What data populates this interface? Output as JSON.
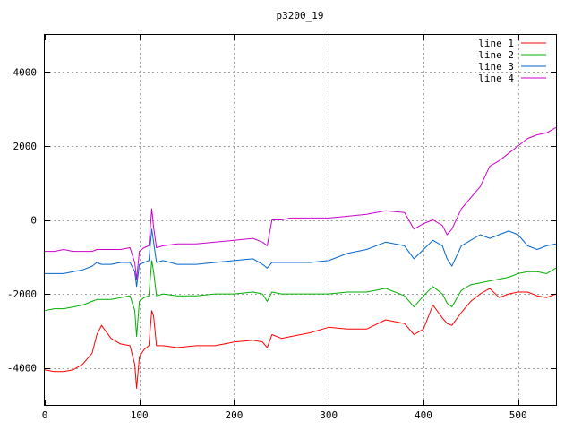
{
  "chart_data": {
    "type": "line",
    "title": "p3200_19",
    "xlabel": "",
    "ylabel": "",
    "xlim": [
      0,
      540
    ],
    "ylim": [
      -5000,
      5000
    ],
    "x_ticks": [
      0,
      100,
      200,
      300,
      400,
      500
    ],
    "y_ticks": [
      -4000,
      -2000,
      0,
      2000,
      4000
    ],
    "grid": true,
    "legend_position": "top-right",
    "x": [
      0,
      10,
      20,
      30,
      40,
      50,
      55,
      60,
      70,
      80,
      90,
      95,
      97,
      100,
      105,
      110,
      113,
      115,
      118,
      125,
      140,
      160,
      180,
      200,
      220,
      230,
      235,
      240,
      250,
      260,
      280,
      300,
      320,
      340,
      360,
      380,
      390,
      400,
      410,
      420,
      425,
      430,
      440,
      450,
      460,
      470,
      480,
      490,
      500,
      510,
      520,
      530,
      540
    ],
    "series": [
      {
        "name": "line 1",
        "color": "#ff0000",
        "values": [
          -4050,
          -4100,
          -4100,
          -4050,
          -3900,
          -3600,
          -3100,
          -2850,
          -3200,
          -3350,
          -3400,
          -3900,
          -4550,
          -3700,
          -3500,
          -3400,
          -2450,
          -2600,
          -3400,
          -3400,
          -3450,
          -3400,
          -3400,
          -3300,
          -3250,
          -3300,
          -3450,
          -3100,
          -3200,
          -3150,
          -3050,
          -2900,
          -2950,
          -2950,
          -2700,
          -2800,
          -3100,
          -2950,
          -2300,
          -2650,
          -2800,
          -2850,
          -2500,
          -2200,
          -2000,
          -1850,
          -2100,
          -2000,
          -1950,
          -1950,
          -2050,
          -2100,
          -2000
        ]
      },
      {
        "name": "line 2",
        "color": "#00b000",
        "values": [
          -2450,
          -2400,
          -2400,
          -2350,
          -2300,
          -2200,
          -2150,
          -2150,
          -2150,
          -2100,
          -2050,
          -2450,
          -3150,
          -2200,
          -2100,
          -2050,
          -1100,
          -1400,
          -2050,
          -2000,
          -2050,
          -2050,
          -2000,
          -2000,
          -1950,
          -2000,
          -2200,
          -1950,
          -2000,
          -2000,
          -2000,
          -2000,
          -1950,
          -1950,
          -1850,
          -2050,
          -2350,
          -2050,
          -1800,
          -2000,
          -2250,
          -2350,
          -1900,
          -1750,
          -1700,
          -1650,
          -1600,
          -1550,
          -1450,
          -1400,
          -1400,
          -1450,
          -1300
        ]
      },
      {
        "name": "line 3",
        "color": "#0066cc",
        "values": [
          -1450,
          -1450,
          -1450,
          -1400,
          -1350,
          -1250,
          -1150,
          -1200,
          -1200,
          -1150,
          -1150,
          -1400,
          -1800,
          -1200,
          -1150,
          -1100,
          -250,
          -600,
          -1150,
          -1100,
          -1200,
          -1200,
          -1150,
          -1100,
          -1050,
          -1200,
          -1300,
          -1150,
          -1150,
          -1150,
          -1150,
          -1100,
          -900,
          -800,
          -600,
          -700,
          -1050,
          -800,
          -550,
          -700,
          -1050,
          -1250,
          -700,
          -550,
          -400,
          -500,
          -400,
          -300,
          -400,
          -700,
          -800,
          -700,
          -650
        ]
      },
      {
        "name": "line 4",
        "color": "#cc00cc",
        "values": [
          -850,
          -850,
          -800,
          -850,
          -850,
          -850,
          -800,
          -800,
          -800,
          -800,
          -750,
          -1150,
          -1600,
          -850,
          -750,
          -700,
          300,
          -200,
          -750,
          -700,
          -650,
          -650,
          -600,
          -550,
          -500,
          -600,
          -700,
          0,
          0,
          50,
          50,
          50,
          100,
          150,
          250,
          200,
          -250,
          -100,
          0,
          -150,
          -400,
          -250,
          300,
          600,
          900,
          1450,
          1600,
          1800,
          2000,
          2200,
          2300,
          2350,
          2500
        ]
      }
    ]
  }
}
